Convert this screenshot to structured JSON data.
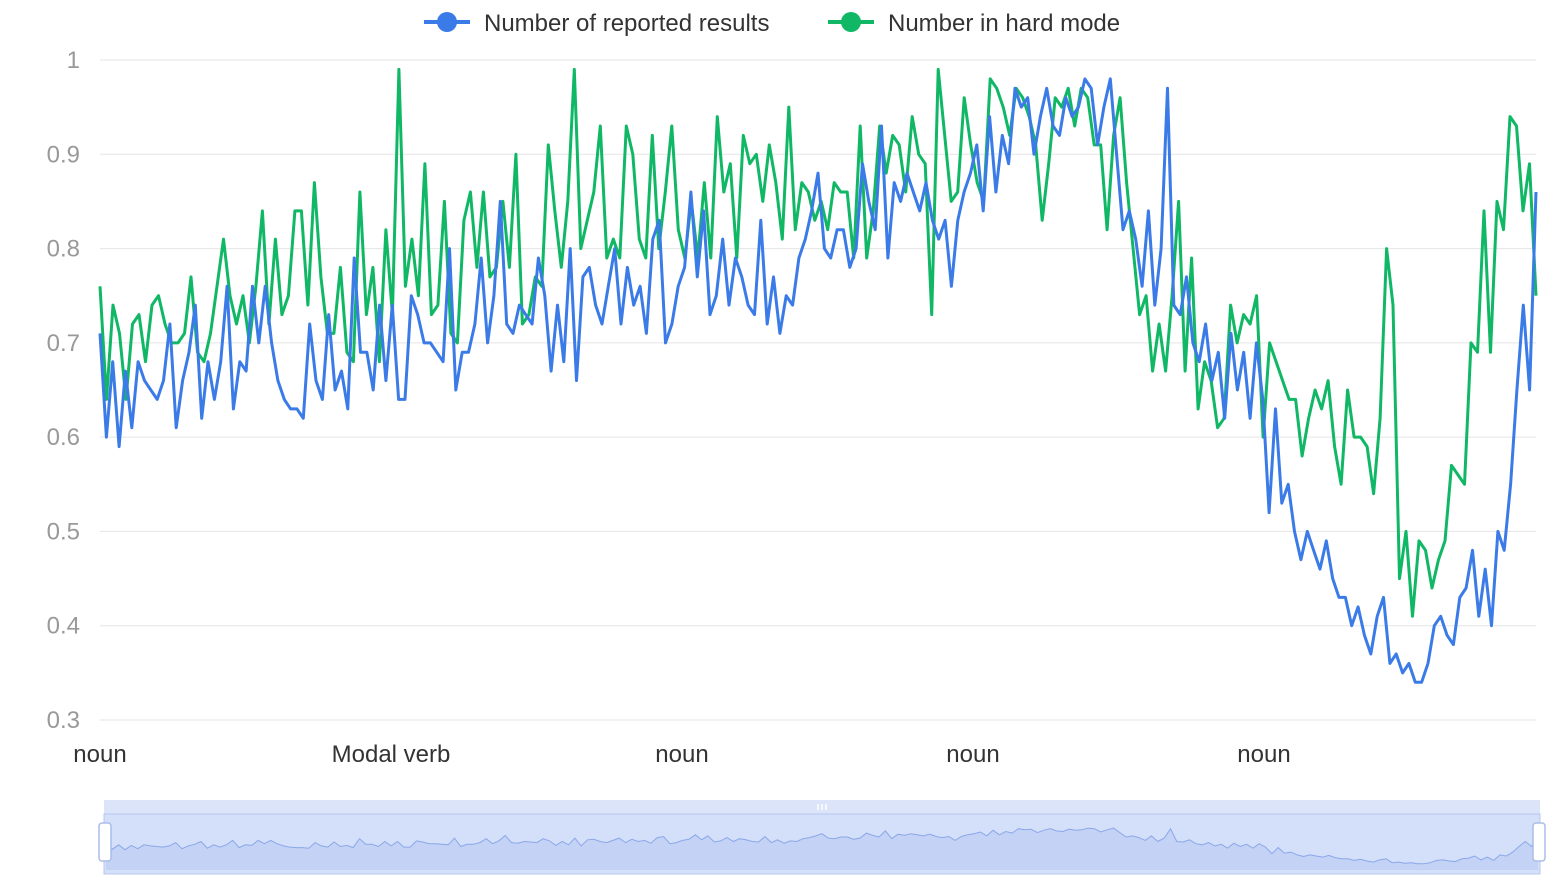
{
  "legend": {
    "series1_label": "Number of  reported results",
    "series2_label": "Number in hard mode"
  },
  "colors": {
    "series1": "#3b7be8",
    "series2": "#10b866",
    "grid": "#e5e5e5",
    "zoom_fill": "#d4dffa",
    "zoom_border": "#b7c7ee"
  },
  "icons": {
    "legend_marker": "line-with-dot",
    "zoom_handle": "slider-handle",
    "zoom_grip": "grip-icon"
  },
  "chart_data": {
    "type": "line",
    "title": "",
    "xlabel": "",
    "ylabel": "",
    "ylim": [
      0.3,
      1.0
    ],
    "yticks": [
      1,
      0.9,
      0.8,
      0.7,
      0.6,
      0.5,
      0.4,
      0.3
    ],
    "xtick_labels": [
      "noun",
      "Modal verb",
      "noun",
      "noun",
      "noun"
    ],
    "grid": true,
    "legend_position": "top-center",
    "zoom_range": [
      0,
      100
    ],
    "series": [
      {
        "name": "Number of  reported results",
        "color": "#3b7be8",
        "values": [
          0.71,
          0.6,
          0.68,
          0.59,
          0.67,
          0.61,
          0.68,
          0.66,
          0.65,
          0.64,
          0.66,
          0.72,
          0.61,
          0.66,
          0.69,
          0.74,
          0.62,
          0.68,
          0.64,
          0.68,
          0.76,
          0.63,
          0.68,
          0.67,
          0.76,
          0.7,
          0.76,
          0.7,
          0.66,
          0.64,
          0.63,
          0.63,
          0.62,
          0.72,
          0.66,
          0.64,
          0.73,
          0.65,
          0.67,
          0.63,
          0.79,
          0.69,
          0.69,
          0.65,
          0.74,
          0.66,
          0.74,
          0.64,
          0.64,
          0.75,
          0.73,
          0.7,
          0.7,
          0.69,
          0.68,
          0.8,
          0.65,
          0.69,
          0.69,
          0.72,
          0.79,
          0.7,
          0.75,
          0.85,
          0.72,
          0.71,
          0.74,
          0.73,
          0.72,
          0.79,
          0.75,
          0.67,
          0.74,
          0.68,
          0.8,
          0.66,
          0.77,
          0.78,
          0.74,
          0.72,
          0.76,
          0.8,
          0.72,
          0.78,
          0.74,
          0.76,
          0.71,
          0.81,
          0.83,
          0.7,
          0.72,
          0.76,
          0.78,
          0.86,
          0.77,
          0.84,
          0.73,
          0.75,
          0.81,
          0.74,
          0.79,
          0.77,
          0.74,
          0.73,
          0.83,
          0.72,
          0.77,
          0.71,
          0.75,
          0.74,
          0.79,
          0.81,
          0.84,
          0.88,
          0.8,
          0.79,
          0.82,
          0.82,
          0.78,
          0.8,
          0.89,
          0.85,
          0.82,
          0.93,
          0.79,
          0.87,
          0.85,
          0.88,
          0.86,
          0.84,
          0.87,
          0.83,
          0.81,
          0.83,
          0.76,
          0.83,
          0.86,
          0.88,
          0.91,
          0.84,
          0.94,
          0.86,
          0.92,
          0.89,
          0.97,
          0.95,
          0.96,
          0.9,
          0.94,
          0.97,
          0.93,
          0.92,
          0.96,
          0.94,
          0.95,
          0.98,
          0.97,
          0.91,
          0.95,
          0.98,
          0.9,
          0.82,
          0.84,
          0.81,
          0.76,
          0.84,
          0.74,
          0.8,
          0.97,
          0.74,
          0.73,
          0.77,
          0.7,
          0.68,
          0.72,
          0.66,
          0.69,
          0.62,
          0.71,
          0.65,
          0.69,
          0.62,
          0.7,
          0.64,
          0.52,
          0.63,
          0.53,
          0.55,
          0.5,
          0.47,
          0.5,
          0.48,
          0.46,
          0.49,
          0.45,
          0.43,
          0.43,
          0.4,
          0.42,
          0.39,
          0.37,
          0.41,
          0.43,
          0.36,
          0.37,
          0.35,
          0.36,
          0.34,
          0.34,
          0.36,
          0.4,
          0.41,
          0.39,
          0.38,
          0.43,
          0.44,
          0.48,
          0.41,
          0.46,
          0.4,
          0.5,
          0.48,
          0.55,
          0.65,
          0.74,
          0.65,
          0.86
        ]
      },
      {
        "name": "Number in hard mode",
        "color": "#10b866",
        "values": [
          0.76,
          0.64,
          0.74,
          0.71,
          0.64,
          0.72,
          0.73,
          0.68,
          0.74,
          0.75,
          0.72,
          0.7,
          0.7,
          0.71,
          0.77,
          0.69,
          0.68,
          0.71,
          0.76,
          0.81,
          0.75,
          0.72,
          0.75,
          0.7,
          0.76,
          0.84,
          0.72,
          0.81,
          0.73,
          0.75,
          0.84,
          0.84,
          0.74,
          0.87,
          0.77,
          0.71,
          0.71,
          0.78,
          0.69,
          0.68,
          0.86,
          0.73,
          0.78,
          0.68,
          0.82,
          0.73,
          0.99,
          0.76,
          0.81,
          0.75,
          0.89,
          0.73,
          0.74,
          0.85,
          0.71,
          0.7,
          0.83,
          0.86,
          0.78,
          0.86,
          0.77,
          0.78,
          0.85,
          0.78,
          0.9,
          0.72,
          0.73,
          0.77,
          0.76,
          0.91,
          0.84,
          0.78,
          0.85,
          0.99,
          0.8,
          0.83,
          0.86,
          0.93,
          0.79,
          0.81,
          0.79,
          0.93,
          0.9,
          0.81,
          0.79,
          0.92,
          0.8,
          0.86,
          0.93,
          0.82,
          0.79,
          0.85,
          0.79,
          0.87,
          0.79,
          0.94,
          0.86,
          0.89,
          0.79,
          0.92,
          0.89,
          0.9,
          0.85,
          0.91,
          0.87,
          0.81,
          0.95,
          0.82,
          0.87,
          0.86,
          0.83,
          0.85,
          0.82,
          0.87,
          0.86,
          0.86,
          0.79,
          0.93,
          0.79,
          0.84,
          0.93,
          0.88,
          0.92,
          0.91,
          0.86,
          0.94,
          0.9,
          0.89,
          0.73,
          0.99,
          0.92,
          0.85,
          0.86,
          0.96,
          0.91,
          0.87,
          0.85,
          0.98,
          0.97,
          0.95,
          0.92,
          0.97,
          0.96,
          0.94,
          0.91,
          0.83,
          0.89,
          0.96,
          0.95,
          0.97,
          0.93,
          0.97,
          0.96,
          0.91,
          0.91,
          0.82,
          0.92,
          0.96,
          0.87,
          0.8,
          0.73,
          0.75,
          0.67,
          0.72,
          0.67,
          0.75,
          0.85,
          0.67,
          0.79,
          0.63,
          0.68,
          0.66,
          0.61,
          0.62,
          0.74,
          0.7,
          0.73,
          0.72,
          0.75,
          0.6,
          0.7,
          0.68,
          0.66,
          0.64,
          0.64,
          0.58,
          0.62,
          0.65,
          0.63,
          0.66,
          0.59,
          0.55,
          0.65,
          0.6,
          0.6,
          0.59,
          0.54,
          0.62,
          0.8,
          0.74,
          0.45,
          0.5,
          0.41,
          0.49,
          0.48,
          0.44,
          0.47,
          0.49,
          0.57,
          0.56,
          0.55,
          0.7,
          0.69,
          0.84,
          0.69,
          0.85,
          0.82,
          0.94,
          0.93,
          0.84,
          0.89,
          0.75
        ]
      }
    ]
  }
}
